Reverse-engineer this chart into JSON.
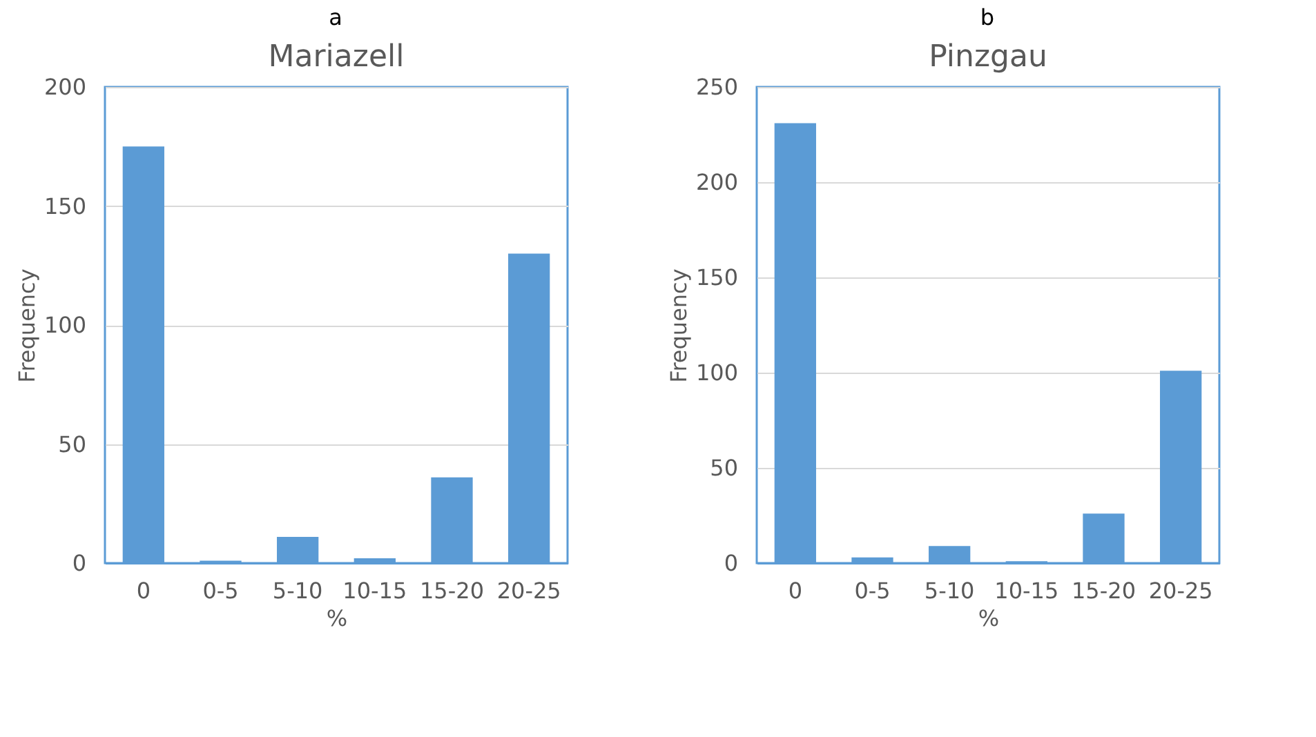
{
  "chart_data": [
    {
      "type": "bar",
      "title": "Mariazell",
      "annotations": [
        "a"
      ],
      "xlabel": "%",
      "ylabel": "Frequency",
      "categories": [
        "0",
        "0-5",
        "5-10",
        "10-15",
        "15-20",
        "20-25"
      ],
      "values": [
        175,
        1,
        11,
        2,
        36,
        130
      ],
      "color": "#5b9bd5",
      "ylim": [
        0,
        200
      ],
      "yticks": [
        0,
        50,
        100,
        150,
        200
      ],
      "grid": "y"
    },
    {
      "type": "bar",
      "title": "Pinzgau",
      "annotations": [
        "b"
      ],
      "xlabel": "%",
      "ylabel": "Frequency",
      "categories": [
        "0",
        "0-5",
        "5-10",
        "10-15",
        "15-20",
        "20-25"
      ],
      "values": [
        231,
        3,
        9,
        1,
        26,
        101
      ],
      "color": "#5b9bd5",
      "ylim": [
        0,
        250
      ],
      "yticks": [
        0,
        50,
        100,
        150,
        200,
        250
      ],
      "grid": "y"
    }
  ]
}
